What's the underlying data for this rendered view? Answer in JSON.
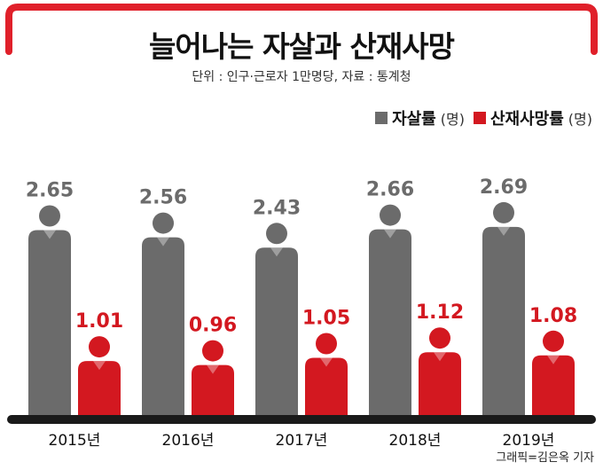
{
  "title": "늘어나는 자살과 산재사망",
  "subtitle": "단위 : 인구·근로자 1만명당,  자료 : 통계청",
  "credit": "그래픽=김은옥 기자",
  "colors": {
    "frame": "#e0202a",
    "suicide": "#6b6b6b",
    "industrial": "#d31820",
    "baseline": "#1a1a1a"
  },
  "legend": [
    {
      "label": "자살률",
      "unit": "(명)",
      "color": "#6b6b6b"
    },
    {
      "label": "산재사망률",
      "unit": "(명)",
      "color": "#d31820"
    }
  ],
  "chart_data": {
    "type": "bar",
    "categories": [
      "2015년",
      "2016년",
      "2017년",
      "2018년",
      "2019년"
    ],
    "series": [
      {
        "name": "자살률",
        "values": [
          2.65,
          2.56,
          2.43,
          2.66,
          2.69
        ],
        "labels": [
          "2.65",
          "2.56",
          "2.43",
          "2.66",
          "2.69"
        ]
      },
      {
        "name": "산재사망률",
        "values": [
          1.01,
          0.96,
          1.05,
          1.12,
          1.08
        ],
        "labels": [
          "1.01",
          "0.96",
          "1.05",
          "1.12",
          "1.08"
        ]
      }
    ],
    "bar_style": "person-silhouette",
    "legend_position": "top-right",
    "grid": false
  }
}
